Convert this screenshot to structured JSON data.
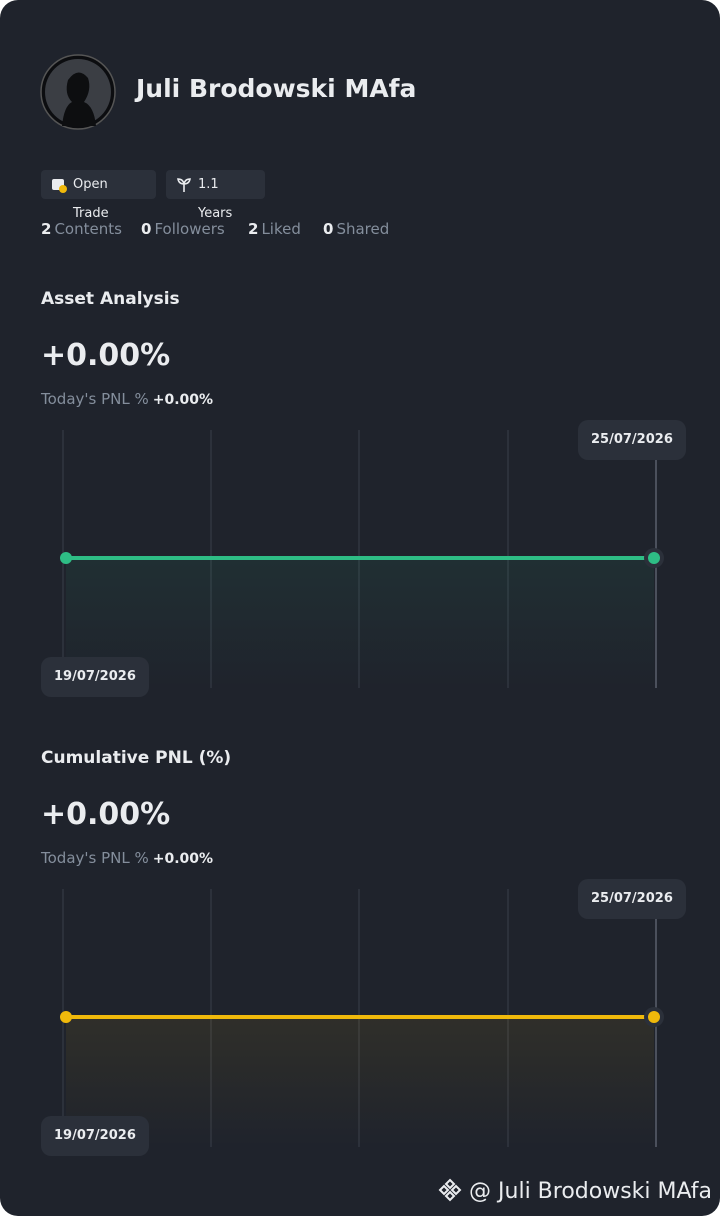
{
  "profile": {
    "name": "Juli Brodowski MAfa",
    "badges": [
      "Open Trade",
      "1.1 Years"
    ],
    "stats": [
      {
        "count": 2,
        "label": "Contents"
      },
      {
        "count": 0,
        "label": "Followers"
      },
      {
        "count": 2,
        "label": "Liked"
      },
      {
        "count": 0,
        "label": "Shared"
      }
    ]
  },
  "charts": [
    {
      "type": "line",
      "title": "Asset Analysis",
      "value": "+0.00%",
      "pnl_label": "Today's PNL %",
      "pnl_value": "+0.00%",
      "x": [
        "19/07/2026",
        "25/07/2026"
      ],
      "values": [
        0,
        0
      ],
      "color": "#2ebd85"
    },
    {
      "type": "line",
      "title": "Cumulative PNL (%)",
      "value": "+0.00%",
      "pnl_label": "Today's PNL %",
      "pnl_value": "+0.00%",
      "x": [
        "19/07/2026",
        "25/07/2026"
      ],
      "values": [
        0,
        0
      ],
      "color": "#f0b90b"
    }
  ],
  "watermark": "@ Juli Brodowski MAfa"
}
